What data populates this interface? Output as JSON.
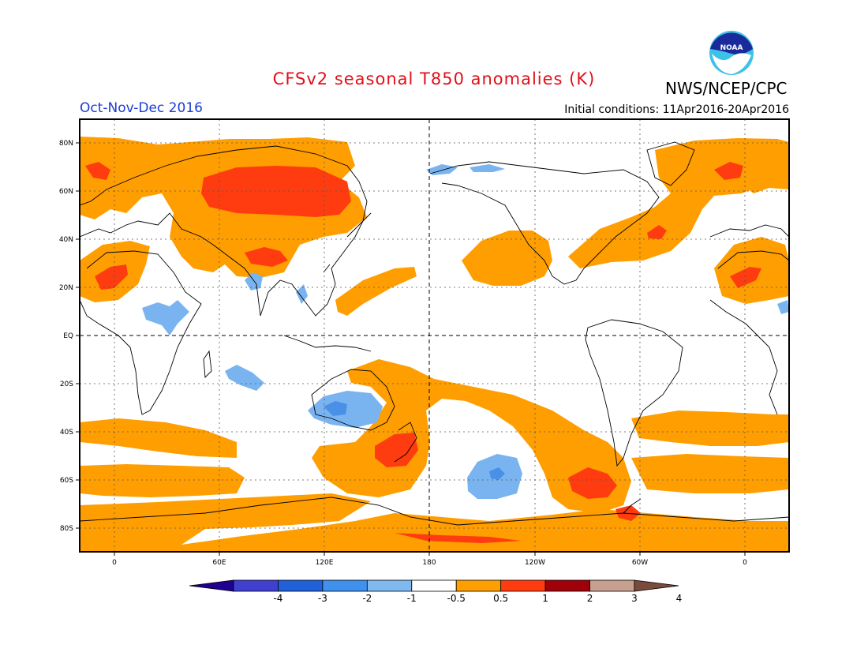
{
  "title": "CFSv2 seasonal T850 anomalies (K)",
  "agency": "NWS/NCEP/CPC",
  "logo_text": "NOAA",
  "period": "Oct-Nov-Dec 2016",
  "initial_conditions": "Initial conditions: 11Apr2016-20Apr2016",
  "map": {
    "lat_labels": [
      "80N",
      "60N",
      "40N",
      "20N",
      "EQ",
      "20S",
      "40S",
      "60S",
      "80S"
    ],
    "lon_labels": [
      "0",
      "60E",
      "120E",
      "180",
      "120W",
      "60W",
      "0"
    ],
    "grid": "dotted",
    "center_lines": "dashed equator and dateline"
  },
  "colorbar": {
    "labels": [
      "-4",
      "-3",
      "-2",
      "-1",
      "-0.5",
      "0.5",
      "1",
      "2",
      "3",
      "4"
    ],
    "colors": [
      "#200090",
      "#4040d0",
      "#2060d8",
      "#4090ee",
      "#80b8f0",
      "#ffffff",
      "#ff9e00",
      "#ff3c10",
      "#a00008",
      "#c8a090",
      "#7a4a3a"
    ]
  },
  "colors": {
    "warm_05_1": "#ff9e00",
    "warm_1_2": "#ff3c10",
    "cool_05_1": "#7ab4f0",
    "cool_1_2": "#4a90e6"
  }
}
